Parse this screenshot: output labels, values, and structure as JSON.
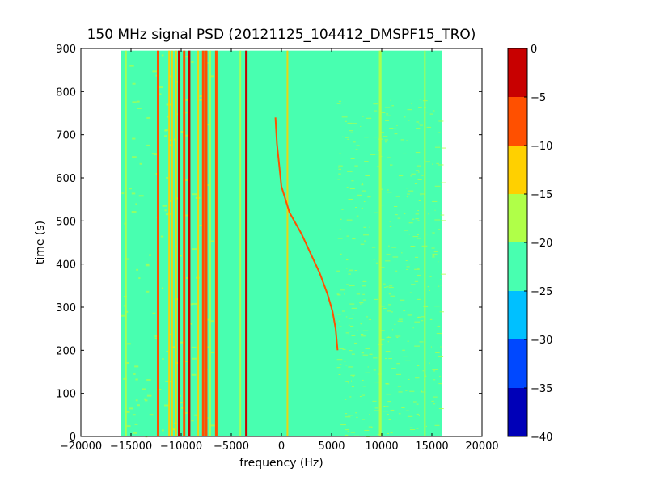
{
  "chart_data": {
    "type": "heatmap",
    "title": "150 MHz signal PSD (20121125_104412_DMSPF15_TRO)",
    "xlabel": "frequency (Hz)",
    "ylabel": "time (s)",
    "xlim": [
      -20000,
      20000
    ],
    "ylim": [
      0,
      900
    ],
    "xticks": [
      -20000,
      -15000,
      -10000,
      -5000,
      0,
      5000,
      10000,
      15000,
      20000
    ],
    "yticks": [
      0,
      100,
      200,
      300,
      400,
      500,
      600,
      700,
      800,
      900
    ],
    "data_extent": {
      "freq_min": -16000,
      "freq_max": 16000,
      "time_min": 0,
      "time_max": 895
    },
    "background_level": -22,
    "colorbar": {
      "levels": [
        -40,
        -35,
        -30,
        -25,
        -20,
        -15,
        -10,
        -5,
        0
      ],
      "ticklabels": [
        "0",
        "−5",
        "−10",
        "−15",
        "−20",
        "−25",
        "−30",
        "−35",
        "−40"
      ],
      "colors": [
        "#0000b8",
        "#0048ff",
        "#00c0ff",
        "#48ffb0",
        "#b0ff48",
        "#ffd000",
        "#ff5000",
        "#c80000"
      ]
    },
    "doppler_trace": [
      {
        "freq": -600,
        "time": 740
      },
      {
        "freq": -450,
        "time": 680
      },
      {
        "freq": 0,
        "time": 580
      },
      {
        "freq": 800,
        "time": 520
      },
      {
        "freq": 2000,
        "time": 470
      },
      {
        "freq": 3000,
        "time": 420
      },
      {
        "freq": 3800,
        "time": 380
      },
      {
        "freq": 4600,
        "time": 330
      },
      {
        "freq": 5100,
        "time": 290
      },
      {
        "freq": 5400,
        "time": 250
      },
      {
        "freq": 5600,
        "time": 200
      }
    ],
    "strong_lines": [
      {
        "freq": -12300,
        "level": -6
      },
      {
        "freq": -10200,
        "level": -3
      },
      {
        "freq": -9700,
        "level": -8
      },
      {
        "freq": -9200,
        "level": -5
      },
      {
        "freq": -7800,
        "level": -8
      },
      {
        "freq": -7500,
        "level": -6
      },
      {
        "freq": -6500,
        "level": -10
      },
      {
        "freq": -3500,
        "level": -2
      }
    ],
    "medium_lines": [
      {
        "freq": -15500,
        "level": -18
      },
      {
        "freq": -11200,
        "level": -13
      },
      {
        "freq": -10900,
        "level": -12
      },
      {
        "freq": -10500,
        "level": -14
      },
      {
        "freq": -8300,
        "level": -12
      },
      {
        "freq": -7100,
        "level": -16
      },
      {
        "freq": -4100,
        "level": -17
      },
      {
        "freq": 600,
        "level": -15
      },
      {
        "freq": 9800,
        "level": -17
      },
      {
        "freq": 9900,
        "level": -17
      },
      {
        "freq": 14300,
        "level": -16
      }
    ]
  }
}
